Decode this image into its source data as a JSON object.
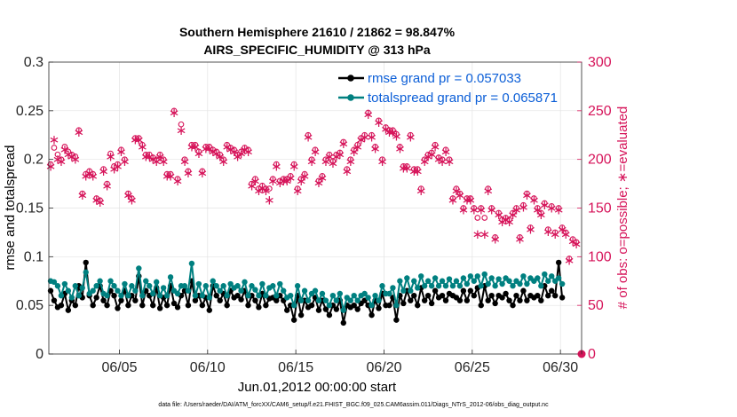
{
  "chart_data": {
    "type": "line",
    "title": [
      "Southern Hemisphere 21610 / 21862 = 98.847%",
      "AIRS_SPECIFIC_HUMIDITY @ 313 hPa"
    ],
    "xlabel": "Jun.01,2012 00:00:00 start",
    "ylabel_left": "rmse and totalspread",
    "ylabel_right": "# of obs: o=possible; ∗=evaluated",
    "ylim_left": [
      0,
      0.3
    ],
    "ylim_right": [
      0,
      300
    ],
    "yticks_left": [
      "0",
      "0.05",
      "0.1",
      "0.15",
      "0.2",
      "0.25",
      "0.3"
    ],
    "yticks_right": [
      "0",
      "50",
      "100",
      "150",
      "200",
      "250",
      "300"
    ],
    "xlim_days": [
      1,
      31.2
    ],
    "xtick_days": [
      5,
      10,
      15,
      20,
      25,
      30
    ],
    "xtick_labels": [
      "06/05",
      "06/10",
      "06/15",
      "06/20",
      "06/25",
      "06/30"
    ],
    "grid": true,
    "legend_position": "top-right",
    "colors": {
      "rmse": "#000000",
      "spread": "#008080",
      "obs": "#d6145a",
      "legend_text": "#0b5ed7"
    },
    "series": [
      {
        "name": "rmse grand pr = 0.057033",
        "values": [
          0.065,
          0.055,
          0.048,
          0.05,
          0.062,
          0.045,
          0.055,
          0.05,
          0.07,
          0.058,
          0.094,
          0.06,
          0.05,
          0.058,
          0.07,
          0.055,
          0.05,
          0.065,
          0.06,
          0.047,
          0.055,
          0.065,
          0.05,
          0.06,
          0.055,
          0.08,
          0.05,
          0.065,
          0.06,
          0.05,
          0.068,
          0.047,
          0.058,
          0.05,
          0.07,
          0.052,
          0.048,
          0.06,
          0.065,
          0.05,
          0.075,
          0.055,
          0.06,
          0.05,
          0.058,
          0.045,
          0.07,
          0.06,
          0.055,
          0.062,
          0.05,
          0.065,
          0.058,
          0.06,
          0.056,
          0.065,
          0.05,
          0.06,
          0.055,
          0.048,
          0.062,
          0.05,
          0.057,
          0.058,
          0.055,
          0.06,
          0.055,
          0.045,
          0.05,
          0.035,
          0.06,
          0.04,
          0.055,
          0.048,
          0.05,
          0.058,
          0.045,
          0.055,
          0.046,
          0.04,
          0.05,
          0.046,
          0.055,
          0.032,
          0.05,
          0.048,
          0.05,
          0.046,
          0.052,
          0.055,
          0.05,
          0.04,
          0.055,
          0.047,
          0.062,
          0.05,
          0.05,
          0.058,
          0.035,
          0.06,
          0.052,
          0.065,
          0.055,
          0.06,
          0.05,
          0.068,
          0.055,
          0.06,
          0.052,
          0.065,
          0.058,
          0.06,
          0.055,
          0.062,
          0.06,
          0.058,
          0.055,
          0.065,
          0.055,
          0.065,
          0.06,
          0.068,
          0.05,
          0.07,
          0.055,
          0.06,
          0.052,
          0.06,
          0.058,
          0.062,
          0.055,
          0.05,
          0.06,
          0.055,
          0.065,
          0.055,
          0.06,
          0.058,
          0.06,
          0.055,
          0.07,
          0.06,
          0.065,
          0.06,
          0.094,
          0.058
        ]
      },
      {
        "name": "totalspread grand pr = 0.065871",
        "values": [
          0.075,
          0.074,
          0.07,
          0.06,
          0.072,
          0.065,
          0.058,
          0.07,
          0.06,
          0.068,
          0.084,
          0.062,
          0.065,
          0.07,
          0.075,
          0.062,
          0.06,
          0.075,
          0.07,
          0.065,
          0.06,
          0.072,
          0.06,
          0.07,
          0.065,
          0.088,
          0.06,
          0.075,
          0.07,
          0.062,
          0.074,
          0.06,
          0.068,
          0.06,
          0.079,
          0.065,
          0.062,
          0.07,
          0.07,
          0.065,
          0.093,
          0.06,
          0.072,
          0.06,
          0.07,
          0.058,
          0.075,
          0.07,
          0.065,
          0.07,
          0.06,
          0.072,
          0.068,
          0.07,
          0.065,
          0.074,
          0.06,
          0.07,
          0.066,
          0.06,
          0.072,
          0.06,
          0.068,
          0.07,
          0.06,
          0.072,
          0.065,
          0.058,
          0.06,
          0.05,
          0.07,
          0.055,
          0.065,
          0.055,
          0.062,
          0.065,
          0.055,
          0.062,
          0.055,
          0.05,
          0.06,
          0.055,
          0.062,
          0.045,
          0.058,
          0.055,
          0.06,
          0.055,
          0.06,
          0.062,
          0.058,
          0.05,
          0.06,
          0.055,
          0.07,
          0.062,
          0.062,
          0.068,
          0.05,
          0.075,
          0.065,
          0.078,
          0.065,
          0.075,
          0.068,
          0.08,
          0.07,
          0.075,
          0.07,
          0.078,
          0.07,
          0.075,
          0.07,
          0.077,
          0.07,
          0.075,
          0.07,
          0.078,
          0.072,
          0.08,
          0.075,
          0.08,
          0.07,
          0.082,
          0.072,
          0.078,
          0.07,
          0.077,
          0.072,
          0.078,
          0.075,
          0.07,
          0.075,
          0.072,
          0.08,
          0.072,
          0.078,
          0.075,
          0.078,
          0.07,
          0.082,
          0.075,
          0.08,
          0.075,
          0.078,
          0.072
        ]
      },
      {
        "name": "# of obs possible",
        "values": [
          195,
          212,
          205,
          200,
          213,
          208,
          205,
          203,
          230,
          165,
          185,
          188,
          185,
          160,
          158,
          190,
          175,
          206,
          193,
          195,
          210,
          200,
          165,
          160,
          222,
          222,
          215,
          205,
          205,
          202,
          200,
          205,
          200,
          185,
          185,
          250,
          180,
          236,
          200,
          188,
          215,
          215,
          208,
          188,
          213,
          213,
          210,
          208,
          205,
          200,
          215,
          212,
          210,
          205,
          208,
          212,
          210,
          175,
          180,
          170,
          173,
          170,
          170,
          180,
          195,
          178,
          180,
          180,
          183,
          195,
          170,
          180,
          185,
          225,
          200,
          210,
          178,
          183,
          200,
          205,
          198,
          205,
          207,
          218,
          190,
          200,
          210,
          215,
          222,
          225,
          248,
          225,
          213,
          240,
          200,
          233,
          230,
          230,
          226,
          213,
          193,
          193,
          225,
          190,
          190,
          170,
          200,
          205,
          207,
          215,
          202,
          200,
          210,
          200,
          160,
          170,
          165,
          150,
          160,
          160,
          150,
          140,
          150,
          140,
          170,
          150,
          120,
          145,
          138,
          140,
          138,
          145,
          150,
          120,
          153,
          165,
          130,
          160,
          150,
          145,
          155,
          128,
          152,
          125,
          150,
          130,
          125,
          98,
          118,
          115
        ]
      },
      {
        "name": "# of obs evaluated",
        "values": [
          193,
          220,
          200,
          198,
          210,
          205,
          203,
          200,
          228,
          163,
          183,
          186,
          183,
          158,
          156,
          188,
          173,
          203,
          190,
          193,
          208,
          198,
          163,
          158,
          220,
          220,
          213,
          203,
          203,
          200,
          198,
          203,
          198,
          183,
          183,
          248,
          178,
          230,
          198,
          186,
          213,
          213,
          206,
          186,
          211,
          211,
          208,
          206,
          203,
          198,
          213,
          210,
          208,
          203,
          206,
          210,
          208,
          173,
          178,
          168,
          171,
          168,
          158,
          178,
          193,
          176,
          178,
          178,
          181,
          193,
          168,
          178,
          183,
          223,
          198,
          208,
          176,
          181,
          198,
          203,
          196,
          203,
          205,
          216,
          188,
          198,
          208,
          213,
          220,
          223,
          246,
          223,
          211,
          238,
          198,
          231,
          228,
          228,
          224,
          211,
          191,
          191,
          223,
          188,
          188,
          168,
          198,
          203,
          205,
          213,
          200,
          198,
          208,
          198,
          158,
          168,
          163,
          148,
          158,
          158,
          148,
          123,
          148,
          123,
          168,
          148,
          118,
          143,
          136,
          138,
          136,
          143,
          148,
          118,
          151,
          163,
          128,
          158,
          148,
          143,
          153,
          126,
          150,
          123,
          148,
          128,
          123,
          96,
          116,
          113
        ]
      }
    ]
  },
  "footer": "data file: /Users/raeder/DAI/ATM_forcXX/CAM6_setup/f.e21.FHIST_BGC.f09_025.CAM6assim.011/Diags_NTrS_2012-06/obs_diag_output.nc"
}
